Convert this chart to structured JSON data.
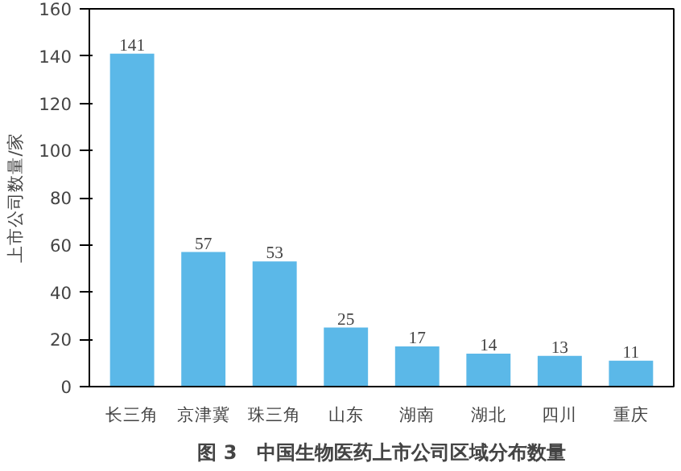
{
  "chart_data": {
    "type": "bar",
    "title": "图 3　中国生物医药上市公司区域分布数量",
    "ylabel": "上市公司数量/家",
    "categories": [
      "长三角",
      "京津冀",
      "珠三角",
      "山东",
      "湖南",
      "湖北",
      "四川",
      "重庆"
    ],
    "values": [
      141,
      57,
      53,
      25,
      17,
      14,
      13,
      11
    ],
    "color": "#5bb8e8",
    "ylim": [
      0,
      160
    ],
    "yticks": [
      0,
      20,
      40,
      60,
      80,
      100,
      120,
      140,
      160
    ],
    "grid": false,
    "data_labels": true
  }
}
